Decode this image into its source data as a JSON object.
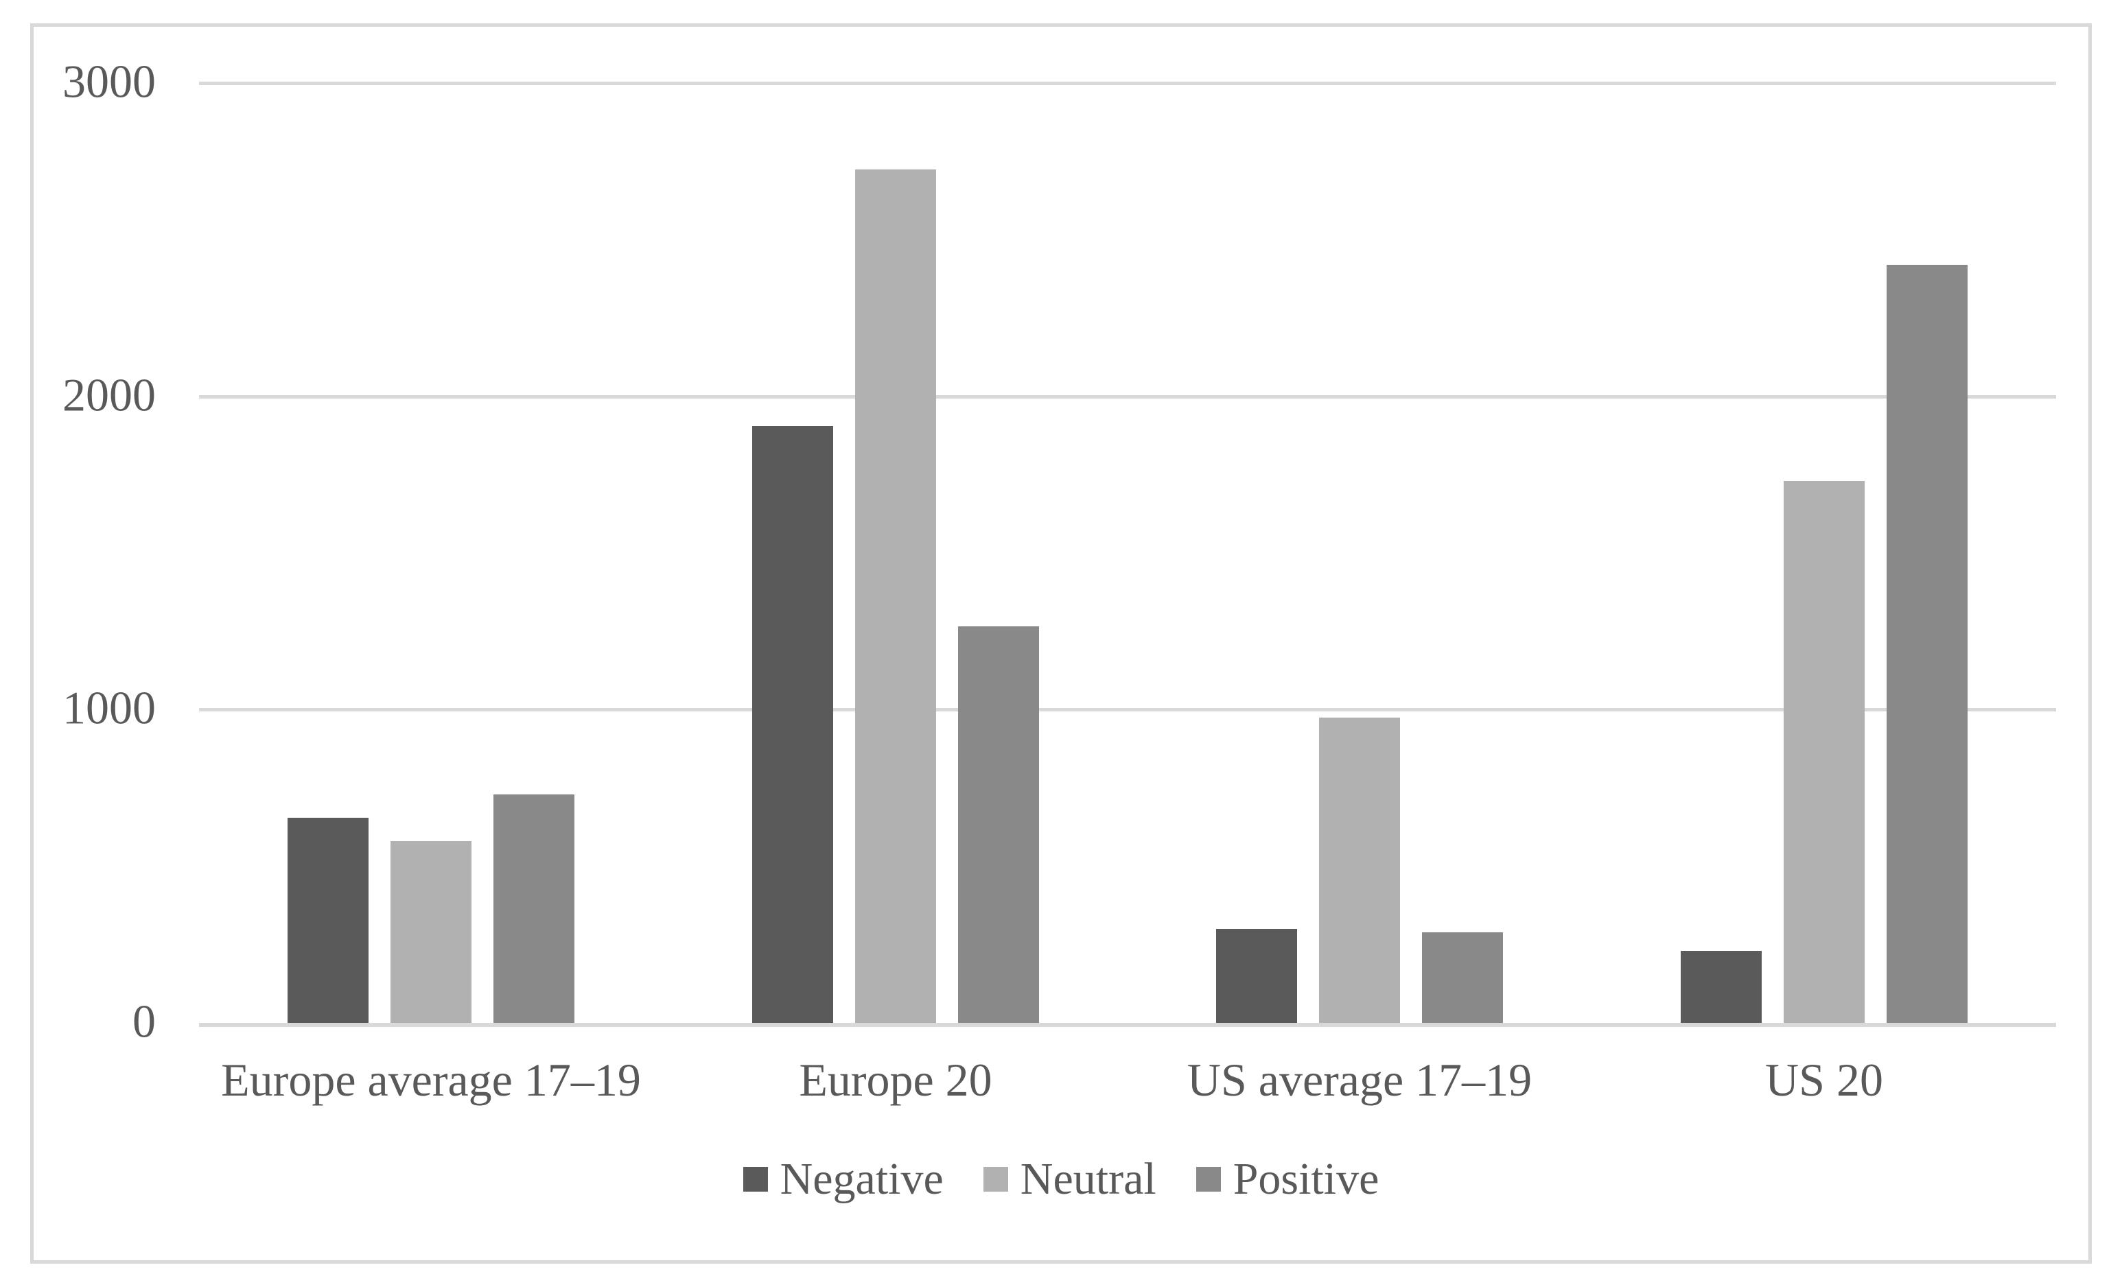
{
  "figure": {
    "background_color": "#ffffff",
    "frame_color": "#d9d9d9",
    "gridline_color": "#d9d9d9",
    "text_color": "#595959"
  },
  "chart_data": {
    "type": "bar",
    "title": "",
    "xlabel": "",
    "ylabel": "",
    "categories": [
      "Europe average 17–19",
      "Europe 20",
      "US average 17–19",
      "US 20"
    ],
    "series": [
      {
        "name": "Negative",
        "color": "#5a5a5a",
        "values": [
          655,
          1905,
          300,
          230
        ]
      },
      {
        "name": "Neutral",
        "color": "#b1b1b1",
        "values": [
          580,
          2725,
          975,
          1730
        ]
      },
      {
        "name": "Positive",
        "color": "#898989",
        "values": [
          730,
          1265,
          290,
          2420
        ]
      }
    ],
    "ylim": [
      0,
      3000
    ],
    "yticks": [
      0,
      1000,
      2000,
      3000
    ],
    "grid": "horizontal-only",
    "legend_position": "bottom-center"
  }
}
